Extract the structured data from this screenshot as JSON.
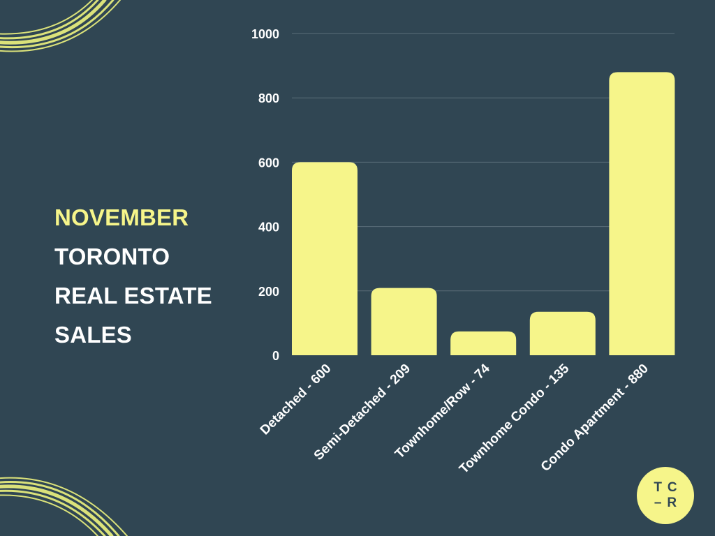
{
  "title": {
    "line1": "NOVEMBER",
    "line2": "TORONTO",
    "line3": "REAL ESTATE",
    "line4": "SALES"
  },
  "logo": {
    "line1": "TC",
    "line2": "–R"
  },
  "colors": {
    "background": "#304653",
    "accent": "#f6f58a",
    "text": "#ffffff",
    "grid": "#5a6d78"
  },
  "chart_data": {
    "type": "bar",
    "title": "",
    "xlabel": "",
    "ylabel": "",
    "categories": [
      "Detached - 600",
      "Semi-Detached - 209",
      "Townhome/Row - 74",
      "Townhome Condo - 135",
      "Condo Apartment - 880"
    ],
    "values": [
      600,
      209,
      74,
      135,
      880
    ],
    "ylim": [
      0,
      1000
    ],
    "yticks": [
      0,
      200,
      400,
      600,
      800,
      1000
    ],
    "grid": true,
    "legend": "none"
  }
}
